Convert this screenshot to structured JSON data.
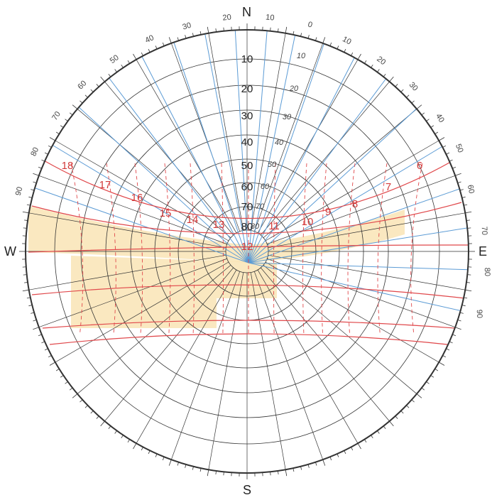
{
  "compass": {
    "north": "N",
    "south": "S",
    "east": "E",
    "west": "W"
  },
  "altitude_labels": [
    "10",
    "20",
    "30",
    "40",
    "50",
    "60",
    "70",
    "80"
  ],
  "rim_degree_labels": [
    "20",
    "10",
    "0",
    "10",
    "20",
    "30",
    "40",
    "50",
    "60",
    "70",
    "80",
    "90",
    "30",
    "40",
    "50",
    "60",
    "70",
    "80",
    "90"
  ],
  "inner_grid_labels": [
    "10",
    "20",
    "30",
    "40",
    "50",
    "60",
    "70",
    "80"
  ],
  "hour_labels": [
    "6",
    "7",
    "8",
    "9",
    "10",
    "11",
    "12",
    "13",
    "14",
    "15",
    "16",
    "17",
    "18"
  ],
  "colors": {
    "grid": "#333333",
    "blue_lines": "#5b9bd5",
    "sun_paths": "#e0484b",
    "shaded_area": "#f9e2b0",
    "hour_labels": "#d23b3b"
  }
}
